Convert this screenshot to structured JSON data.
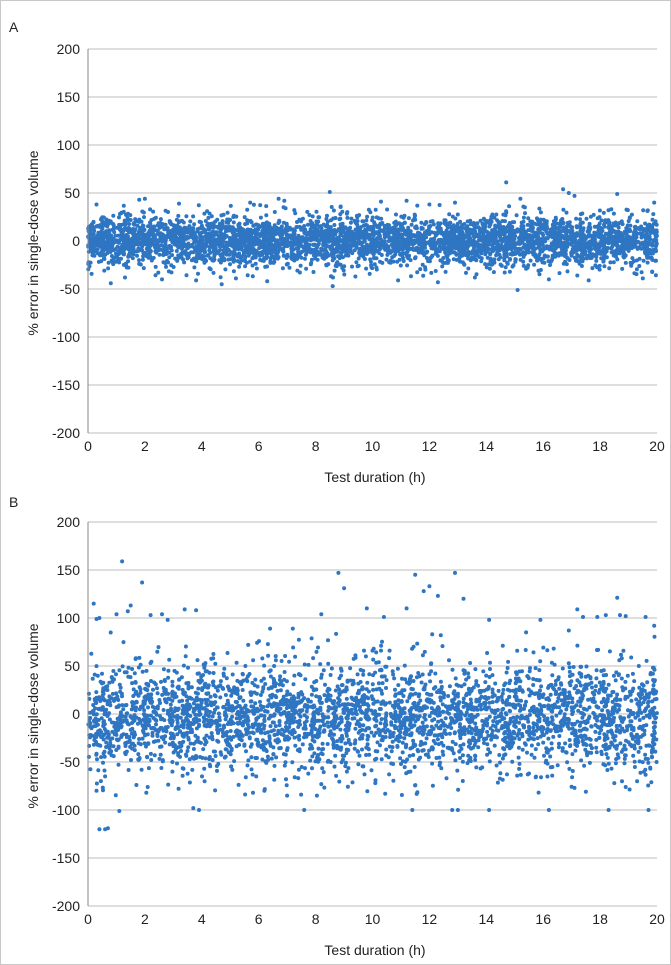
{
  "frame": {
    "border_color": "#c8c8c8"
  },
  "chart_data": [
    {
      "type": "scatter",
      "panel_label": "A",
      "xlabel": "Test duration (h)",
      "ylabel": "% error in single-dose volume",
      "xlim": [
        0,
        20
      ],
      "ylim": [
        -200,
        200
      ],
      "xticks": [
        "0",
        "2",
        "4",
        "6",
        "8",
        "10",
        "12",
        "14",
        "16",
        "18",
        "20"
      ],
      "yticks": [
        "200",
        "150",
        "100",
        "50",
        "0",
        "-50",
        "-100",
        "-150",
        "-200"
      ],
      "grid": "horizontal",
      "marker_color": "#2e75c2",
      "bulk": {
        "count": 4200,
        "center": 0,
        "spread": 13,
        "clip": 38
      },
      "points": [
        [
          8.5,
          51
        ],
        [
          14.7,
          61
        ],
        [
          16.7,
          54
        ],
        [
          16.9,
          50
        ],
        [
          18.6,
          49
        ],
        [
          17.1,
          47
        ],
        [
          15.2,
          44
        ],
        [
          6.7,
          44
        ],
        [
          6.9,
          42
        ],
        [
          1.8,
          43
        ],
        [
          2.0,
          44
        ],
        [
          12.9,
          40
        ],
        [
          5.7,
          40
        ],
        [
          3.2,
          39
        ],
        [
          10.3,
          41
        ],
        [
          19.9,
          40
        ],
        [
          0.3,
          38
        ],
        [
          11.2,
          42
        ],
        [
          15.1,
          -51
        ],
        [
          8.6,
          -47
        ],
        [
          4.7,
          -45
        ],
        [
          0.8,
          -44
        ],
        [
          3.8,
          -41
        ],
        [
          12.3,
          -43
        ],
        [
          6.3,
          -42
        ],
        [
          17.6,
          -41
        ],
        [
          19.5,
          -39
        ],
        [
          2.6,
          -40
        ],
        [
          10.9,
          -41
        ],
        [
          1.3,
          -38
        ],
        [
          13.6,
          -38
        ],
        [
          5.2,
          -39
        ],
        [
          9.4,
          -37
        ],
        [
          16.2,
          -40
        ]
      ]
    },
    {
      "type": "scatter",
      "panel_label": "B",
      "xlabel": "Test duration (h)",
      "ylabel": "% error in single-dose volume",
      "xlim": [
        0,
        20
      ],
      "ylim": [
        -200,
        200
      ],
      "xticks": [
        "0",
        "2",
        "4",
        "6",
        "8",
        "10",
        "12",
        "14",
        "16",
        "18",
        "20"
      ],
      "yticks": [
        "200",
        "150",
        "100",
        "50",
        "0",
        "-50",
        "-100",
        "-150",
        "-200"
      ],
      "grid": "horizontal",
      "marker_color": "#2e75c2",
      "bulk": {
        "count": 3400,
        "center": -3,
        "spread": 28,
        "clip": 85
      },
      "points": [
        [
          1.2,
          159
        ],
        [
          1.9,
          137
        ],
        [
          1.5,
          113
        ],
        [
          0.2,
          115
        ],
        [
          0.3,
          99
        ],
        [
          0.4,
          100
        ],
        [
          1.0,
          104
        ],
        [
          1.4,
          107
        ],
        [
          2.2,
          103
        ],
        [
          2.6,
          104
        ],
        [
          2.8,
          98
        ],
        [
          3.4,
          109
        ],
        [
          3.8,
          108
        ],
        [
          8.8,
          147
        ],
        [
          9.0,
          131
        ],
        [
          11.5,
          145
        ],
        [
          12.0,
          133
        ],
        [
          11.8,
          128
        ],
        [
          12.3,
          123
        ],
        [
          12.9,
          147
        ],
        [
          13.2,
          120
        ],
        [
          8.2,
          104
        ],
        [
          9.8,
          110
        ],
        [
          7.2,
          89
        ],
        [
          6.4,
          89
        ],
        [
          10.4,
          101
        ],
        [
          11.2,
          110
        ],
        [
          14.1,
          98
        ],
        [
          15.9,
          98
        ],
        [
          17.2,
          109
        ],
        [
          17.4,
          101
        ],
        [
          17.9,
          101
        ],
        [
          18.2,
          103
        ],
        [
          18.6,
          121
        ],
        [
          18.7,
          103
        ],
        [
          18.9,
          102
        ],
        [
          19.6,
          101
        ],
        [
          19.9,
          92
        ],
        [
          10.0,
          66
        ],
        [
          10.3,
          66
        ],
        [
          9.7,
          66
        ],
        [
          10.6,
          66
        ],
        [
          9.4,
          61
        ],
        [
          12.1,
          83
        ],
        [
          12.4,
          82
        ],
        [
          15.4,
          85
        ],
        [
          16.9,
          87
        ],
        [
          0.4,
          -120
        ],
        [
          0.6,
          -120
        ],
        [
          0.7,
          -119
        ],
        [
          1.1,
          -101
        ],
        [
          3.7,
          -98
        ],
        [
          3.9,
          -100
        ],
        [
          7.6,
          -100
        ],
        [
          11.4,
          -100
        ],
        [
          12.8,
          -100
        ],
        [
          13.0,
          -100
        ],
        [
          14.1,
          -100
        ],
        [
          16.2,
          -100
        ],
        [
          18.3,
          -100
        ],
        [
          19.7,
          -100
        ],
        [
          0.3,
          -80
        ],
        [
          0.6,
          -65
        ],
        [
          1.7,
          -74
        ],
        [
          2.1,
          -76
        ],
        [
          4.1,
          -70
        ],
        [
          5.8,
          -82
        ],
        [
          6.2,
          -80
        ],
        [
          7.0,
          -85
        ],
        [
          8.2,
          -73
        ],
        [
          9.1,
          -60
        ],
        [
          10.1,
          -72
        ],
        [
          12.6,
          -67
        ],
        [
          15.5,
          -62
        ],
        [
          17.1,
          -77
        ],
        [
          17.5,
          -81
        ],
        [
          18.5,
          -72
        ],
        [
          18.9,
          -76
        ],
        [
          19.3,
          -70
        ],
        [
          19.8,
          -71
        ]
      ]
    }
  ]
}
